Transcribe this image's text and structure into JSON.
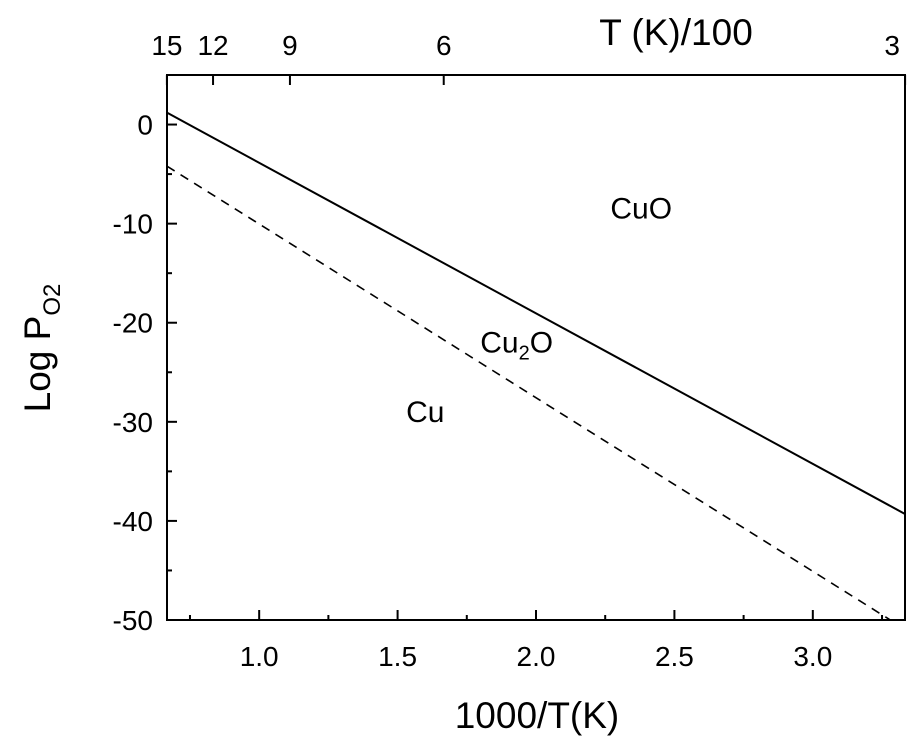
{
  "chart_data": {
    "type": "line",
    "title": "",
    "xlabel": "1000/T(K)",
    "ylabel": "Log P",
    "ylabel_sub": "O2",
    "top_axis_label": "T (K)/100",
    "xlim": [
      0.667,
      3.333
    ],
    "ylim": [
      -50,
      5
    ],
    "grid": false,
    "x_ticks": [
      1.0,
      1.5,
      2.0,
      2.5,
      3.0
    ],
    "x_tick_labels": [
      "1.0",
      "1.5",
      "2.0",
      "2.5",
      "3.0"
    ],
    "y_ticks": [
      0,
      -10,
      -20,
      -30,
      -40,
      -50
    ],
    "y_tick_labels": [
      "0",
      "-10",
      "-20",
      "-30",
      "-40",
      "-50"
    ],
    "top_ticks": [
      15,
      12,
      9,
      6,
      3
    ],
    "top_tick_labels": [
      "15",
      "12",
      "9",
      "6",
      "3"
    ],
    "series": [
      {
        "style": "solid",
        "x": [
          0.667,
          3.333
        ],
        "y": [
          1.2,
          -39.3
        ]
      },
      {
        "style": "dashed",
        "x": [
          0.667,
          3.28
        ],
        "y": [
          -4.2,
          -50
        ]
      }
    ],
    "annotations": [
      {
        "text": "CuO",
        "x": 2.38,
        "y": -9.5
      },
      {
        "text": "Cu",
        "sub": "2",
        "text_after": "O",
        "x": 1.93,
        "y": -23.0
      },
      {
        "text": "Cu",
        "x": 1.6,
        "y": -30.0
      }
    ]
  }
}
